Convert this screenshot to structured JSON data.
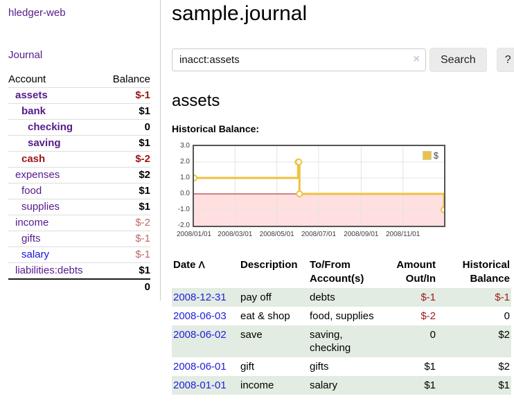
{
  "brand": "hledger-web",
  "nav": {
    "journal": "Journal"
  },
  "sidebar": {
    "columns": {
      "account": "Account",
      "balance": "Balance"
    },
    "accounts": [
      {
        "name": "assets",
        "depth": 0,
        "in_query": true,
        "balance": "$-1",
        "balance_tone": "neg"
      },
      {
        "name": "bank",
        "depth": 1,
        "in_query": true,
        "balance": "$1",
        "balance_tone": "pos"
      },
      {
        "name": "checking",
        "depth": 2,
        "in_query": true,
        "balance": "0",
        "balance_tone": "pos"
      },
      {
        "name": "saving",
        "depth": 2,
        "in_query": true,
        "balance": "$1",
        "balance_tone": "pos"
      },
      {
        "name": "cash",
        "depth": 1,
        "in_query": true,
        "balance": "$-2",
        "balance_tone": "neg",
        "name_color": "maroon"
      },
      {
        "name": "expenses",
        "depth": 0,
        "in_query": false,
        "balance": "$2",
        "balance_tone": "pos"
      },
      {
        "name": "food",
        "depth": 1,
        "in_query": false,
        "balance": "$1",
        "balance_tone": "pos"
      },
      {
        "name": "supplies",
        "depth": 1,
        "in_query": false,
        "balance": "$1",
        "balance_tone": "pos"
      },
      {
        "name": "income",
        "depth": 0,
        "in_query": false,
        "balance": "$-2",
        "balance_tone": "neg-soft"
      },
      {
        "name": "gifts",
        "depth": 1,
        "in_query": false,
        "balance": "$-1",
        "balance_tone": "neg-soft"
      },
      {
        "name": "salary",
        "depth": 1,
        "in_query": false,
        "balance": "$-1",
        "balance_tone": "neg-soft",
        "name_color": "blue"
      },
      {
        "name": "liabilities:debts",
        "depth": 0,
        "in_query": false,
        "balance": "$1",
        "balance_tone": "pos"
      }
    ],
    "total": "0"
  },
  "header": {
    "title": "sample.journal"
  },
  "search": {
    "query": "inacct:assets",
    "clear_icon": "×",
    "button": "Search",
    "help_button": "?"
  },
  "account_page": {
    "title": "assets",
    "chart_label": "Historical Balance:"
  },
  "chart_data": {
    "type": "line",
    "title": "Historical Balance",
    "steps": true,
    "series": [
      {
        "name": "$",
        "color": "#edc240",
        "points": [
          [
            "2008/01/01",
            1.0
          ],
          [
            "2008/06/01",
            2.0
          ],
          [
            "2008/06/02",
            2.0
          ],
          [
            "2008/06/03",
            0.0
          ],
          [
            "2008/12/31",
            -1.0
          ]
        ]
      }
    ],
    "xlim": [
      "2008/01/01",
      "2008/12/31"
    ],
    "ylim": [
      -2.0,
      3.0
    ],
    "x_ticks": [
      "2008/01/01",
      "2008/03/01",
      "2008/05/01",
      "2008/07/01",
      "2008/09/01",
      "2008/11/01"
    ],
    "y_ticks": [
      "3.0",
      "2.0",
      "1.0",
      "0.0",
      "-1.0",
      "-2.0"
    ],
    "legend": {
      "label": "$",
      "position": "top-right"
    },
    "grid_color": "#e4e4e4",
    "border_color": "#545454",
    "zero_line_color": "#a41414",
    "negative_region_fill": "#ffdfdf"
  },
  "register": {
    "headers": {
      "date": "Date",
      "description": "Description",
      "accounts": "To/From Account(s)",
      "amount": "Amount Out/In",
      "balance": "Historical Balance"
    },
    "sort_icon": "ᐱ",
    "rows": [
      {
        "date": "2008-12-31",
        "description": "pay off",
        "accounts": "debts",
        "amount": "$-1",
        "balance": "$-1"
      },
      {
        "date": "2008-06-03",
        "description": "eat & shop",
        "accounts": "food, supplies",
        "amount": "$-2",
        "balance": "0"
      },
      {
        "date": "2008-06-02",
        "description": "save",
        "accounts": "saving, checking",
        "amount": "0",
        "balance": "$2"
      },
      {
        "date": "2008-06-01",
        "description": "gift",
        "accounts": "gifts",
        "amount": "$1",
        "balance": "$2"
      },
      {
        "date": "2008-01-01",
        "description": "income",
        "accounts": "salary",
        "amount": "$1",
        "balance": "$1"
      }
    ]
  }
}
